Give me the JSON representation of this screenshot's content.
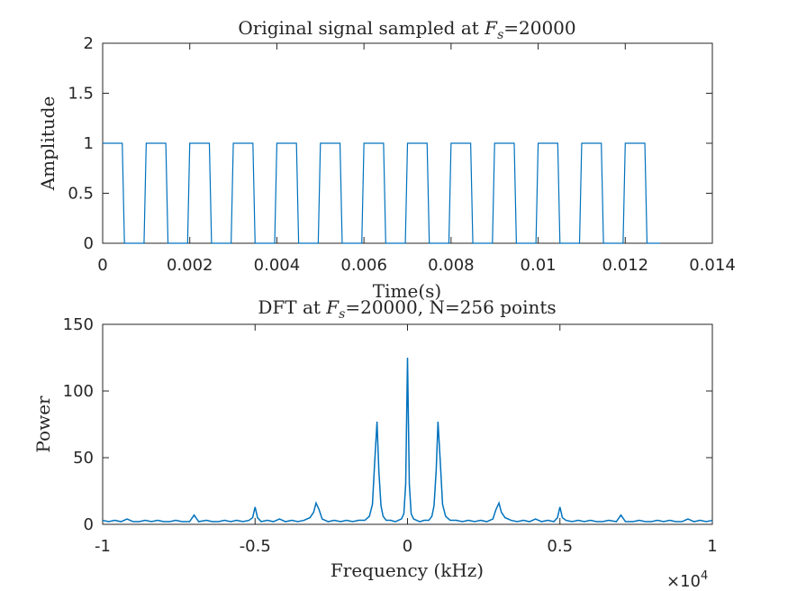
{
  "chart_data": [
    {
      "type": "line",
      "title": "Original signal sampled at F_s=20000",
      "title_parts": {
        "pre": "Original signal sampled at ",
        "var": "F",
        "sub": "s",
        "post": "=20000"
      },
      "xlabel": "Time(s)",
      "ylabel": "Amplitude",
      "xlim": [
        0,
        0.014
      ],
      "ylim": [
        0,
        2
      ],
      "xticks": [
        0,
        0.002,
        0.004,
        0.006,
        0.008,
        0.01,
        0.012,
        0.014
      ],
      "xtick_labels": [
        "0",
        "0.002",
        "0.004",
        "0.006",
        "0.008",
        "0.01",
        "0.012",
        "0.014"
      ],
      "yticks": [
        0,
        0.5,
        1,
        1.5,
        2
      ],
      "ytick_labels": [
        "0",
        "0.5",
        "1",
        "1.5",
        "2"
      ],
      "grid": false,
      "line_color": "#0072BD",
      "series": [
        {
          "period": 0.001,
          "duty": 0.5,
          "start": 0,
          "end": 0.0128,
          "sample_step": 5e-05,
          "low": 0,
          "high": 1
        }
      ]
    },
    {
      "type": "line",
      "title": "DFT at F_s=20000, N=256 points",
      "title_parts": {
        "pre": "DFT at ",
        "var": "F",
        "sub": "s",
        "post": "=20000, N=256 points"
      },
      "xlabel": "Frequency (kHz)",
      "ylabel": "Power",
      "xlim": [
        -10000,
        10000
      ],
      "ylim": [
        0,
        150
      ],
      "xticks": [
        -10000,
        -5000,
        0,
        5000,
        10000
      ],
      "xtick_labels": [
        "-1",
        "-0.5",
        "0",
        "0.5",
        "1"
      ],
      "x_exponent": "×10",
      "x_exponent_power": "4",
      "yticks": [
        0,
        50,
        100,
        150
      ],
      "ytick_labels": [
        "0",
        "50",
        "100",
        "150"
      ],
      "grid": false,
      "line_color": "#0072BD",
      "series": [
        {
          "points": [
            [
              -10000,
              3
            ],
            [
              -9800,
              2
            ],
            [
              -9600,
              3
            ],
            [
              -9400,
              2
            ],
            [
              -9200,
              4
            ],
            [
              -9000,
              2
            ],
            [
              -8800,
              2
            ],
            [
              -8600,
              3
            ],
            [
              -8400,
              2
            ],
            [
              -8200,
              3
            ],
            [
              -8000,
              2
            ],
            [
              -7800,
              2
            ],
            [
              -7600,
              3
            ],
            [
              -7400,
              2
            ],
            [
              -7150,
              2
            ],
            [
              -7000,
              7
            ],
            [
              -6850,
              2
            ],
            [
              -6600,
              3
            ],
            [
              -6400,
              2
            ],
            [
              -6200,
              2
            ],
            [
              -6000,
              3
            ],
            [
              -5800,
              2
            ],
            [
              -5600,
              3
            ],
            [
              -5400,
              2
            ],
            [
              -5200,
              3
            ],
            [
              -5080,
              5
            ],
            [
              -5000,
              13
            ],
            [
              -4920,
              5
            ],
            [
              -4800,
              2
            ],
            [
              -4600,
              3
            ],
            [
              -4400,
              2
            ],
            [
              -4200,
              4
            ],
            [
              -4000,
              2
            ],
            [
              -3800,
              3
            ],
            [
              -3600,
              2
            ],
            [
              -3400,
              3
            ],
            [
              -3200,
              5
            ],
            [
              -3080,
              9
            ],
            [
              -3000,
              16
            ],
            [
              -2900,
              11
            ],
            [
              -2800,
              4
            ],
            [
              -2600,
              2
            ],
            [
              -2400,
              3
            ],
            [
              -2200,
              2
            ],
            [
              -2000,
              3
            ],
            [
              -1800,
              2
            ],
            [
              -1600,
              3
            ],
            [
              -1400,
              3
            ],
            [
              -1250,
              6
            ],
            [
              -1150,
              15
            ],
            [
              -1080,
              45
            ],
            [
              -1000,
              77
            ],
            [
              -940,
              40
            ],
            [
              -870,
              14
            ],
            [
              -800,
              6
            ],
            [
              -700,
              3
            ],
            [
              -550,
              3
            ],
            [
              -400,
              2
            ],
            [
              -300,
              3
            ],
            [
              -200,
              4
            ],
            [
              -120,
              8
            ],
            [
              -60,
              30
            ],
            [
              0,
              125
            ],
            [
              60,
              30
            ],
            [
              120,
              8
            ],
            [
              200,
              4
            ],
            [
              300,
              3
            ],
            [
              400,
              2
            ],
            [
              550,
              3
            ],
            [
              700,
              3
            ],
            [
              800,
              6
            ],
            [
              870,
              14
            ],
            [
              940,
              40
            ],
            [
              1000,
              77
            ],
            [
              1080,
              45
            ],
            [
              1150,
              15
            ],
            [
              1250,
              6
            ],
            [
              1400,
              3
            ],
            [
              1600,
              3
            ],
            [
              1800,
              2
            ],
            [
              2000,
              3
            ],
            [
              2200,
              2
            ],
            [
              2400,
              3
            ],
            [
              2600,
              2
            ],
            [
              2800,
              4
            ],
            [
              2900,
              11
            ],
            [
              3000,
              16
            ],
            [
              3080,
              9
            ],
            [
              3200,
              5
            ],
            [
              3400,
              3
            ],
            [
              3600,
              2
            ],
            [
              3800,
              3
            ],
            [
              4000,
              2
            ],
            [
              4200,
              4
            ],
            [
              4400,
              2
            ],
            [
              4600,
              3
            ],
            [
              4800,
              2
            ],
            [
              4920,
              5
            ],
            [
              5000,
              13
            ],
            [
              5080,
              5
            ],
            [
              5200,
              3
            ],
            [
              5400,
              2
            ],
            [
              5600,
              3
            ],
            [
              5800,
              2
            ],
            [
              6000,
              3
            ],
            [
              6200,
              2
            ],
            [
              6400,
              2
            ],
            [
              6600,
              3
            ],
            [
              6850,
              2
            ],
            [
              7000,
              7
            ],
            [
              7150,
              2
            ],
            [
              7400,
              2
            ],
            [
              7600,
              3
            ],
            [
              7800,
              2
            ],
            [
              8000,
              2
            ],
            [
              8200,
              3
            ],
            [
              8400,
              2
            ],
            [
              8600,
              3
            ],
            [
              8800,
              2
            ],
            [
              9000,
              2
            ],
            [
              9200,
              4
            ],
            [
              9400,
              2
            ],
            [
              9600,
              3
            ],
            [
              9800,
              2
            ],
            [
              10000,
              3
            ]
          ]
        }
      ]
    }
  ]
}
